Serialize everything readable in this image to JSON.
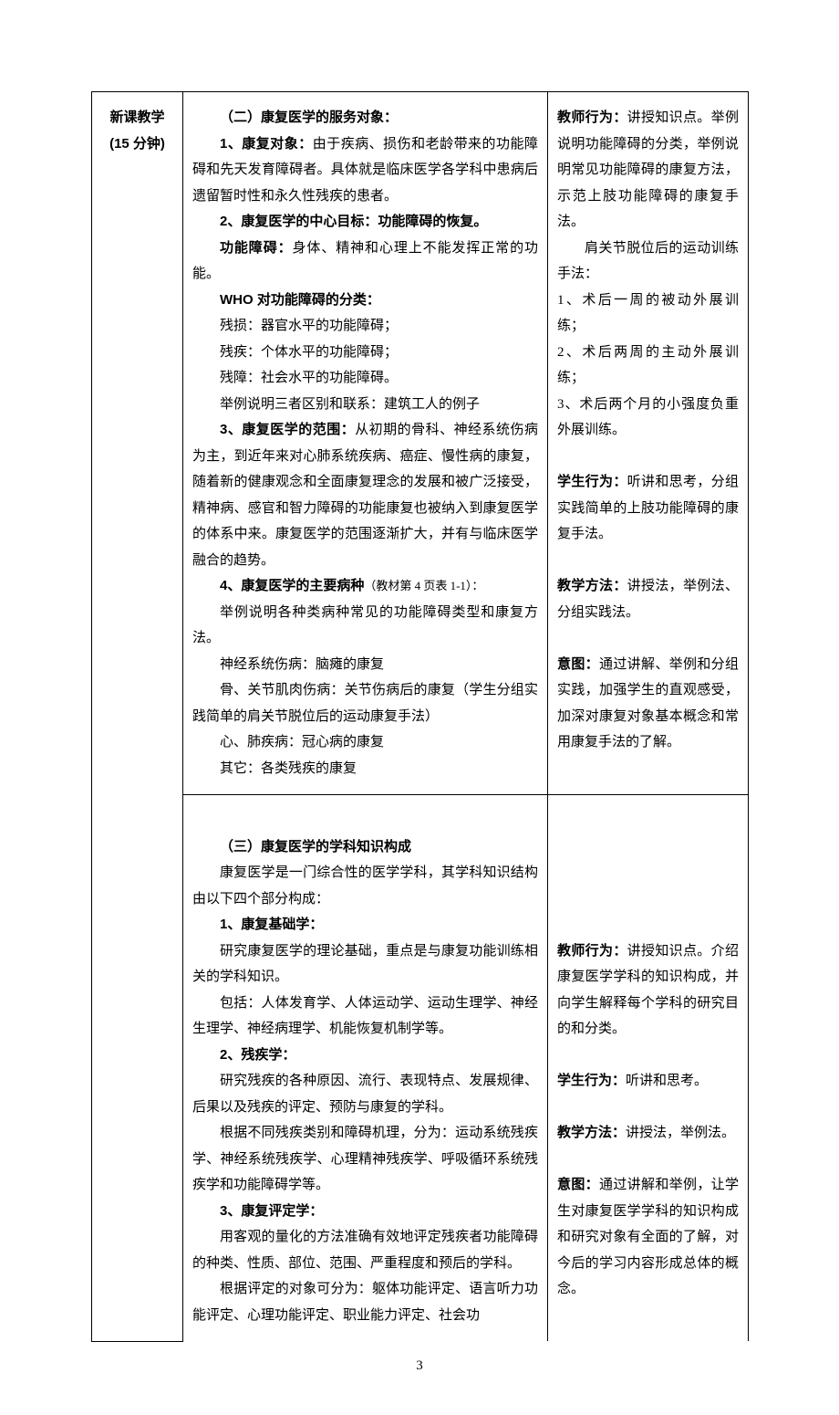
{
  "page_number": "3",
  "label": {
    "line1": "新课教学",
    "line2": "(15 分钟)"
  },
  "section2": {
    "title": "（二）康复医学的服务对象：",
    "p1_label": "1、康复对象：",
    "p1_text": "由于疾病、损伤和老龄带来的功能障碍和先天发育障碍者。具体就是临床医学各学科中患病后遗留暂时性和永久性残疾的患者。",
    "p2_label": "2、康复医学的中心目标：功能障碍的恢复。",
    "p2_sub_label": "功能障碍：",
    "p2_sub_text": "身体、精神和心理上不能发挥正常的功能。",
    "who_label": "WHO 对功能障碍的分类：",
    "who_1": "残损：器官水平的功能障碍；",
    "who_2": "残疾：个体水平的功能障碍；",
    "who_3": "残障：社会水平的功能障碍。",
    "who_eg": "举例说明三者区别和联系：建筑工人的例子",
    "p3_label": "3、康复医学的范围：",
    "p3_text": "从初期的骨科、神经系统伤病为主，到近年来对心肺系统疾病、癌症、慢性病的康复，随着新的健康观念和全面康复理念的发展和被广泛接受，精神病、感官和智力障碍的功能康复也被纳入到康复医学的体系中来。康复医学的范围逐渐扩大，并有与临床医学融合的趋势。",
    "p4_label": "4、康复医学的主要病种",
    "p4_ref": "（教材第 4 页表 1-1）：",
    "p4_text": "举例说明各种类病种常见的功能障碍类型和康复方法。",
    "p4_a": "神经系统伤病：脑瘫的康复",
    "p4_b": "骨、关节肌肉伤病：关节伤病后的康复（学生分组实践简单的肩关节脱位后的运动康复手法）",
    "p4_c": "心、肺疾病：冠心病的康复",
    "p4_d": "其它：各类残疾的康复",
    "note_t1_label": "教师行为：",
    "note_t1_text": "讲授知识点。举例说明功能障碍的分类，举例说明常见功能障碍的康复方法，示范上肢功能障碍的康复手法。",
    "note_t1_sub": "肩关节脱位后的运动训练手法：",
    "note_t1_1": "1、术后一周的被动外展训练；",
    "note_t1_2": "2、术后两周的主动外展训练；",
    "note_t1_3": "3、术后两个月的小强度负重外展训练。",
    "note_s_label": "学生行为：",
    "note_s_text": "听讲和思考，分组实践简单的上肢功能障碍的康复手法。",
    "note_m_label": "教学方法：",
    "note_m_text": "讲授法，举例法、分组实践法。",
    "note_i_label": "意图：",
    "note_i_text": "通过讲解、举例和分组实践，加强学生的直观感受，加深对康复对象基本概念和常用康复手法的了解。"
  },
  "section3": {
    "title": "（三）康复医学的学科知识构成",
    "intro": "康复医学是一门综合性的医学学科，其学科知识结构由以下四个部分构成：",
    "p1_label": "1、康复基础学：",
    "p1_a": "研究康复医学的理论基础，重点是与康复功能训练相关的学科知识。",
    "p1_b": "包括：人体发育学、人体运动学、运动生理学、神经生理学、神经病理学、机能恢复机制学等。",
    "p2_label": "2、残疾学：",
    "p2_a": "研究残疾的各种原因、流行、表现特点、发展规律、后果以及残疾的评定、预防与康复的学科。",
    "p2_b": "根据不同残疾类别和障碍机理，分为：运动系统残疾学、神经系统残疾学、心理精神残疾学、呼吸循环系统残疾学和功能障碍学等。",
    "p3_label": "3、康复评定学：",
    "p3_a": "用客观的量化的方法准确有效地评定残疾者功能障碍的种类、性质、部位、范围、严重程度和预后的学科。",
    "p3_b": "根据评定的对象可分为：躯体功能评定、语言听力功能评定、心理功能评定、职业能力评定、社会功",
    "note_t_label": "教师行为：",
    "note_t_text": "讲授知识点。介绍康复医学学科的知识构成，并向学生解释每个学科的研究目的和分类。",
    "note_s_label": "学生行为：",
    "note_s_text": "听讲和思考。",
    "note_m_label": "教学方法：",
    "note_m_text": "讲授法，举例法。",
    "note_i_label": "意图：",
    "note_i_text": "通过讲解和举例，让学生对康复医学学科的知识构成和研究对象有全面的了解，对今后的学习内容形成总体的概念。"
  }
}
